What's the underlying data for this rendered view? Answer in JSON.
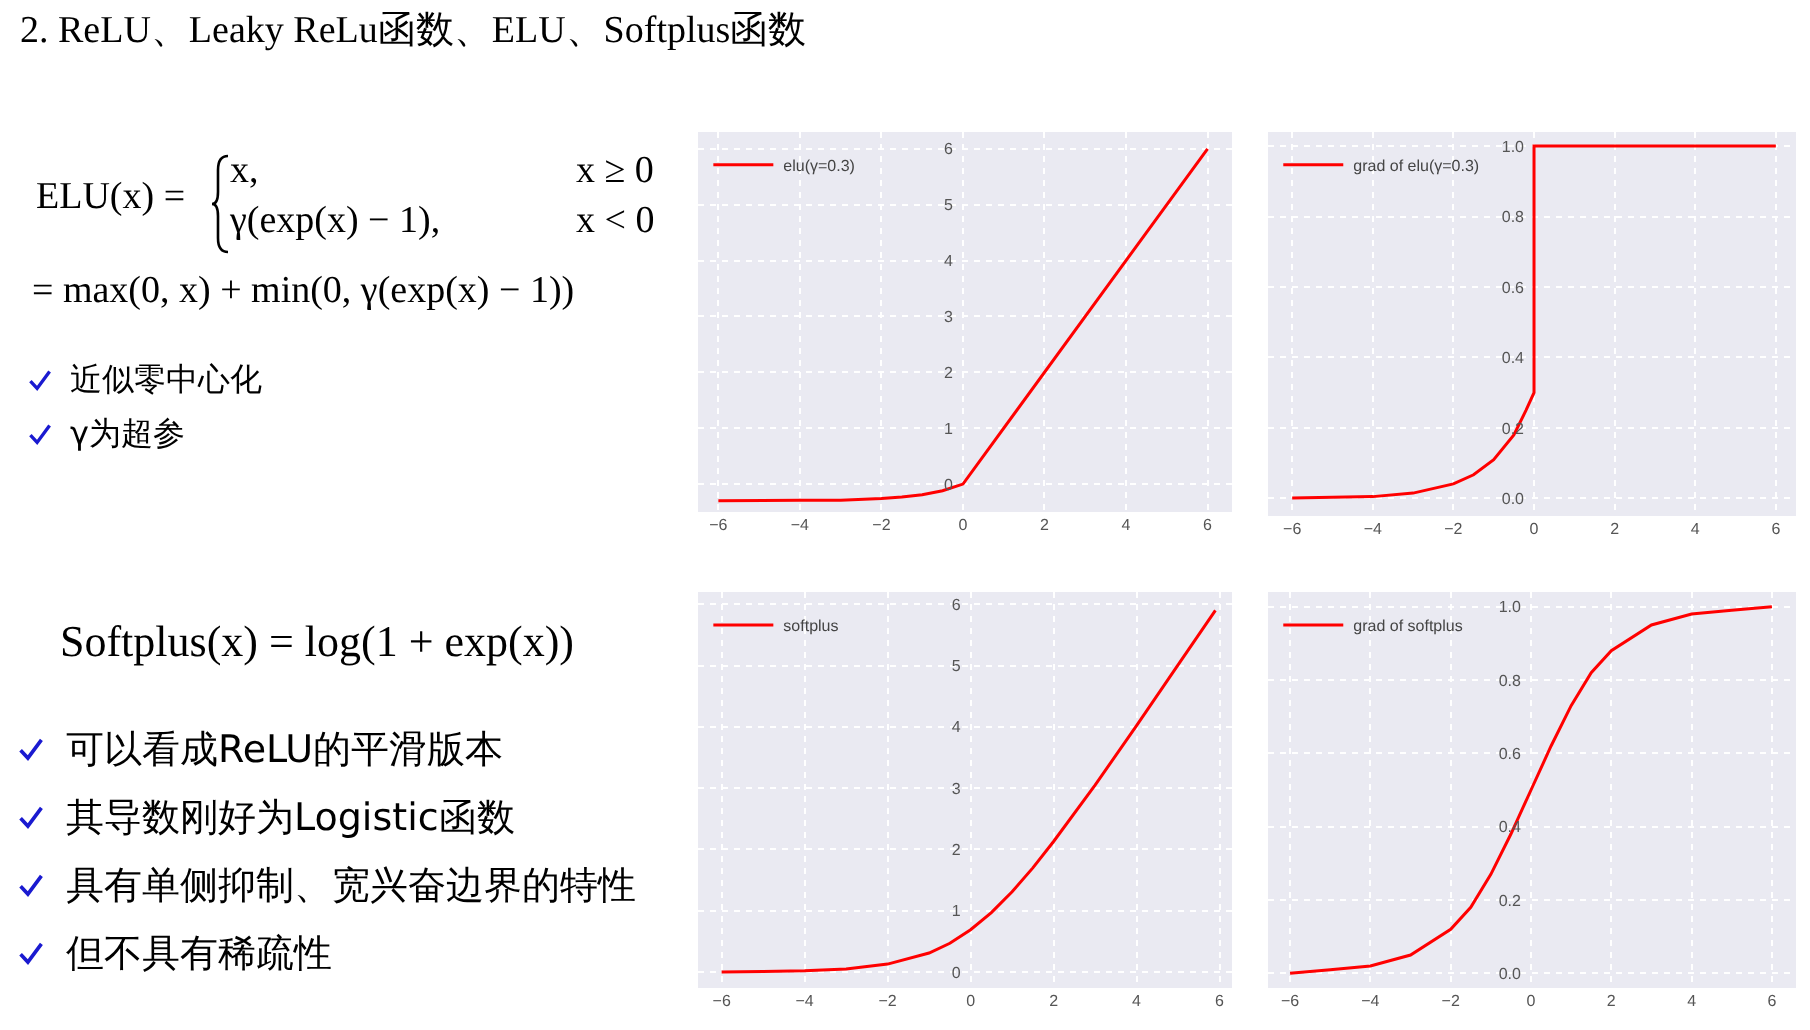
{
  "chart_data": [
    {
      "type": "other",
      "title": "2. ReLU、Leaky ReLu函数、ELU、Softplus函数",
      "annotations": [
        "ELU(x) =",
        "x,",
        "x ≥ 0",
        "γ(exp(x) − 1),",
        "x < 0",
        "= max(0, x) + min(0, γ(exp(x) − 1))",
        "近似零中心化",
        "γ为超参"
      ]
    },
    {
      "type": "line",
      "x": [
        -6,
        -4,
        -3,
        -2,
        -1.5,
        -1,
        -0.5,
        0,
        6
      ],
      "series": [
        {
          "name": "elu(γ=0.3)",
          "color": "#ff0000",
          "values": [
            -0.3,
            -0.29,
            -0.29,
            -0.26,
            -0.23,
            -0.19,
            -0.12,
            0,
            6
          ]
        }
      ],
      "xlim": [
        -6.5,
        6.6
      ],
      "ylim": [
        -0.5,
        6.3
      ],
      "xticks": [
        {
          "value": -6,
          "label": "−6"
        },
        {
          "value": -4,
          "label": "−4"
        },
        {
          "value": -2,
          "label": "−2"
        },
        0,
        2,
        4,
        6
      ],
      "yticks": [
        0,
        1,
        2,
        3,
        4,
        5,
        6
      ],
      "grid": true,
      "legend": "top left"
    },
    {
      "type": "line",
      "x": [
        -6,
        -4,
        -3,
        -2,
        -1.5,
        -1,
        -0.5,
        -0.2,
        0,
        0,
        6
      ],
      "series": [
        {
          "name": "grad of elu(γ=0.3)",
          "color": "#ff0000",
          "values": [
            0.001,
            0.005,
            0.015,
            0.041,
            0.067,
            0.11,
            0.18,
            0.25,
            0.3,
            1,
            1
          ]
        }
      ],
      "xlim": [
        -6.6,
        6.5
      ],
      "ylim": [
        -0.05,
        1.04
      ],
      "xticks": [
        {
          "value": -6,
          "label": "−6"
        },
        {
          "value": -4,
          "label": "−4"
        },
        {
          "value": -2,
          "label": "−2"
        },
        0,
        2,
        4,
        6
      ],
      "yticks": [
        {
          "value": 0,
          "label": "0.0"
        },
        {
          "value": 0.2,
          "label": "0.2"
        },
        {
          "value": 0.4,
          "label": "0.4"
        },
        {
          "value": 0.6,
          "label": "0.6"
        },
        {
          "value": 0.8,
          "label": "0.8"
        },
        {
          "value": 1,
          "label": "1.0"
        }
      ],
      "grid": true,
      "legend": "top left"
    },
    {
      "type": "other",
      "annotations": [
        "Softplus(x) = log(1 + exp(x))",
        "可以看成ReLU的平滑版本",
        "其导数刚好为Logistic函数",
        "具有单侧抑制、宽兴奋边界的特性",
        "但不具有稀疏性"
      ]
    },
    {
      "type": "line",
      "x": [
        -6,
        -5,
        -4,
        -3,
        -2,
        -1,
        -0.5,
        0,
        0.5,
        1,
        1.5,
        2,
        3,
        4,
        5,
        5.9
      ],
      "series": [
        {
          "name": "softplus",
          "color": "#ff0000",
          "values": [
            0,
            0.01,
            0.02,
            0.05,
            0.13,
            0.31,
            0.47,
            0.69,
            0.97,
            1.31,
            1.7,
            2.13,
            3.05,
            4.02,
            5.01,
            5.9
          ]
        }
      ],
      "xlim": [
        -6.57,
        6.3
      ],
      "ylim": [
        -0.26,
        6.2
      ],
      "xticks": [
        {
          "value": -6,
          "label": "−6"
        },
        {
          "value": -4,
          "label": "−4"
        },
        {
          "value": -2,
          "label": "−2"
        },
        0,
        2,
        4,
        6
      ],
      "yticks": [
        0,
        1,
        2,
        3,
        4,
        5,
        6
      ],
      "grid": true,
      "legend": "top left"
    },
    {
      "type": "line",
      "x": [
        -6,
        -5,
        -4,
        -3,
        -2,
        -1.5,
        -1,
        -0.5,
        0,
        0.5,
        1,
        1.5,
        2,
        3,
        4,
        5,
        6
      ],
      "series": [
        {
          "name": "grad of softplus",
          "color": "#ff0000",
          "values": [
            0,
            0.01,
            0.02,
            0.05,
            0.12,
            0.18,
            0.27,
            0.38,
            0.5,
            0.62,
            0.73,
            0.82,
            0.88,
            0.95,
            0.98,
            0.99,
            1
          ]
        }
      ],
      "xlim": [
        -6.55,
        6.6
      ],
      "ylim": [
        -0.04,
        1.04
      ],
      "xticks": [
        {
          "value": -6,
          "label": "−6"
        },
        {
          "value": -4,
          "label": "−4"
        },
        {
          "value": -2,
          "label": "−2"
        },
        0,
        2,
        4,
        6
      ],
      "yticks": [
        {
          "value": 0,
          "label": "0.0"
        },
        {
          "value": 0.2,
          "label": "0.2"
        },
        {
          "value": 0.4,
          "label": "0.4"
        },
        {
          "value": 0.6,
          "label": "0.6"
        },
        {
          "value": 0.8,
          "label": "0.8"
        },
        {
          "value": 1,
          "label": "1.0"
        }
      ],
      "grid": true,
      "legend": "top left"
    }
  ]
}
